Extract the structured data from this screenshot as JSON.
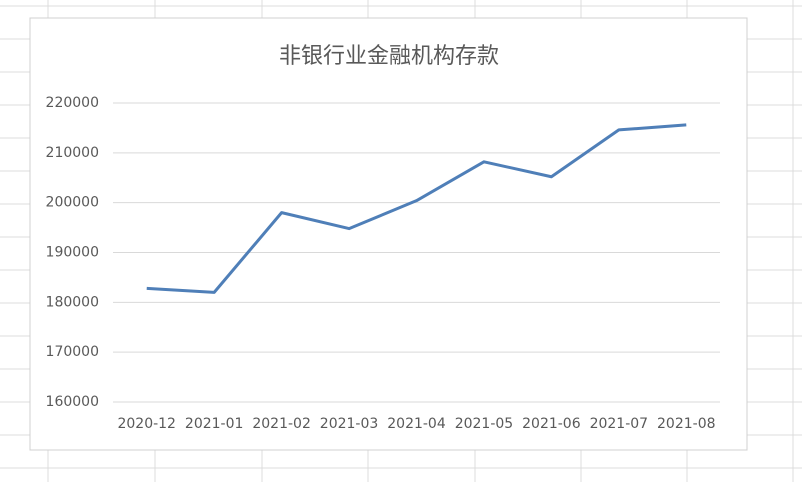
{
  "chart_data": {
    "type": "line",
    "title": "非银行业金融机构存款",
    "categories": [
      "2020-12",
      "2021-01",
      "2021-02",
      "2021-03",
      "2021-04",
      "2021-05",
      "2021-06",
      "2021-07",
      "2021-08"
    ],
    "series": [
      {
        "name": "非银行业金融机构存款",
        "color": "#4f7fb8",
        "values": [
          182800,
          182000,
          198000,
          194800,
          200400,
          208200,
          205200,
          214600,
          215600
        ]
      }
    ],
    "ylim": [
      160000,
      220000
    ],
    "yticks": [
      160000,
      170000,
      180000,
      190000,
      200000,
      210000,
      220000
    ],
    "grid": true
  }
}
